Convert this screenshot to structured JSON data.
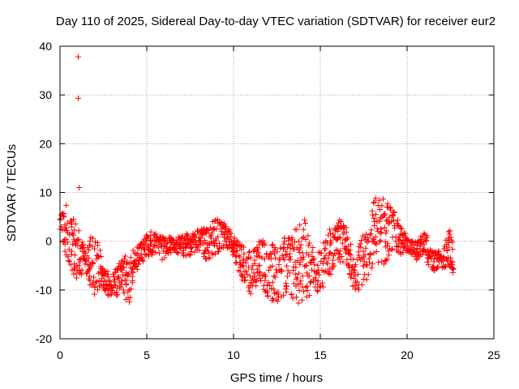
{
  "chart_data": {
    "type": "scatter",
    "title": "Day 110 of 2025, Sidereal Day-to-day VTEC variation (SDTVAR) for receiver eur2",
    "xlabel": "GPS time / hours",
    "ylabel": "SDTVAR / TECUs",
    "xlim": [
      0,
      25
    ],
    "ylim": [
      -20,
      40
    ],
    "xticks": [
      0,
      5,
      10,
      15,
      20,
      25
    ],
    "yticks": [
      -20,
      -10,
      0,
      10,
      20,
      30,
      40
    ],
    "xtick_labels": [
      "0",
      "5",
      "10",
      "15",
      "20",
      "25"
    ],
    "ytick_labels": [
      "-20",
      "-10",
      "0",
      "10",
      "20",
      "30",
      "40"
    ],
    "grid": true,
    "marker": "+",
    "series": [
      {
        "name": "SDTVAR",
        "color": "#ff0000",
        "outliers": [
          [
            1.05,
            37.8
          ],
          [
            1.05,
            29.3
          ],
          [
            1.1,
            11.0
          ]
        ],
        "envelope_hours": [
          0,
          0.5,
          1,
          1.5,
          2,
          2.5,
          3,
          3.5,
          4,
          4.5,
          5,
          5.5,
          6,
          6.5,
          7,
          7.5,
          8,
          8.5,
          9,
          9.5,
          10,
          10.5,
          11,
          11.5,
          12,
          12.5,
          13,
          13.5,
          14,
          14.5,
          15,
          15.5,
          16,
          16.5,
          17,
          17.5,
          18,
          18.5,
          19,
          19.5,
          20,
          20.5,
          21,
          21.5,
          22,
          22.5,
          22.7
        ],
        "envelope_min": [
          2,
          -5,
          -8,
          -7,
          -11,
          -10,
          -12,
          -11,
          -13,
          -5,
          -4,
          -3,
          -4,
          -2,
          -3,
          -3,
          -2,
          -4,
          -3,
          -1,
          -3,
          -8,
          -11,
          -8,
          -12,
          -13,
          -11,
          -12,
          -14,
          -10,
          -11,
          -8,
          -4,
          -5,
          -11,
          -10,
          -5,
          -5,
          -4,
          -3,
          -2,
          -4,
          -4,
          -6,
          -6,
          -5,
          -8
        ],
        "envelope_max": [
          6,
          8,
          4,
          -2,
          3,
          -5,
          -7,
          -4,
          -2,
          -1,
          2,
          2,
          1,
          1,
          1,
          2,
          3,
          3,
          5,
          4,
          1,
          -1,
          -2,
          0,
          1,
          -2,
          1,
          3,
          6,
          -1,
          -2,
          3,
          5,
          3,
          -4,
          2,
          9,
          9,
          8,
          4,
          1,
          0,
          2,
          -2,
          -2,
          3,
          -2
        ]
      }
    ]
  }
}
